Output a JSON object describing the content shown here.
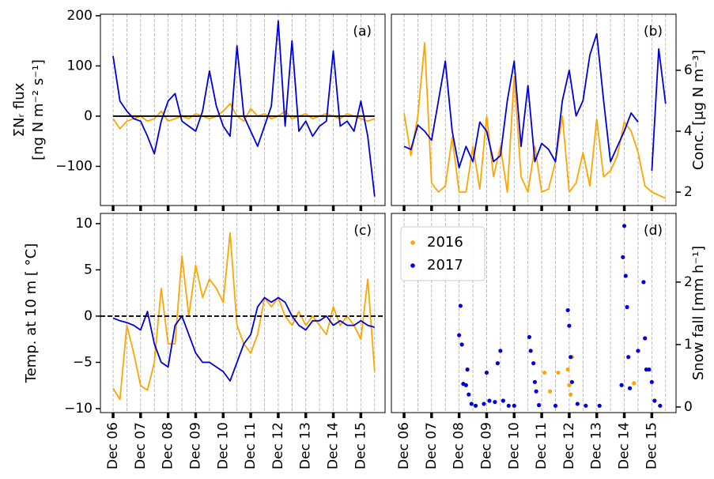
{
  "chart_data": [
    {
      "type": "line",
      "label": "(a)",
      "ylabel": [
        "ΣNᵣ flux",
        "[ng N m⁻² s⁻¹]"
      ],
      "yaxis": "left",
      "x": [
        6,
        6.25,
        6.5,
        6.75,
        7,
        7.25,
        7.5,
        7.75,
        8,
        8.25,
        8.5,
        8.75,
        9,
        9.25,
        9.5,
        9.75,
        10,
        10.25,
        10.5,
        10.75,
        11,
        11.25,
        11.5,
        11.75,
        12,
        12.25,
        12.5,
        12.75,
        13,
        13.25,
        13.5,
        13.75,
        14,
        14.25,
        14.5,
        14.75,
        15,
        15.25,
        15.5
      ],
      "series": [
        {
          "color": "orange",
          "values": [
            -5,
            -25,
            -10,
            -5,
            0,
            -10,
            -5,
            10,
            -10,
            -5,
            0,
            -5,
            5,
            0,
            -5,
            0,
            10,
            25,
            0,
            -10,
            15,
            0,
            5,
            -5,
            0,
            10,
            -5,
            0,
            5,
            -5,
            0,
            5,
            0,
            -5,
            5,
            0,
            -5,
            -10,
            -5
          ]
        },
        {
          "color": "#0000dd",
          "values": [
            120,
            30,
            10,
            -5,
            -10,
            -40,
            -75,
            -10,
            30,
            45,
            -10,
            -20,
            -30,
            10,
            90,
            20,
            -20,
            -40,
            140,
            0,
            -30,
            -60,
            -20,
            20,
            190,
            -20,
            150,
            -30,
            -10,
            -40,
            -20,
            -10,
            130,
            -20,
            -10,
            -30,
            30,
            -40,
            -160
          ]
        }
      ],
      "hline": 0,
      "hline_style": "solid",
      "xlim": [
        5.54,
        15.88
      ],
      "ylim": [
        -178,
        203
      ],
      "yticks": [
        {
          "value": -100,
          "label": "−100"
        },
        0,
        100,
        200
      ],
      "xticks": [
        6,
        7,
        8,
        9,
        10,
        11,
        12,
        13,
        14,
        15
      ],
      "xgrid": [
        6,
        6.5,
        7,
        7.5,
        8,
        8.5,
        9,
        9.5,
        10,
        10.5,
        11,
        11.5,
        12,
        12.5,
        13,
        13.5,
        14,
        14.5,
        15,
        15.5
      ]
    },
    {
      "type": "line",
      "label": "(b)",
      "ylabel": [
        "Conc. [μg N m⁻³]"
      ],
      "yaxis": "right",
      "x": [
        6,
        6.25,
        6.5,
        6.75,
        7,
        7.25,
        7.5,
        7.75,
        8,
        8.25,
        8.5,
        8.75,
        9,
        9.25,
        9.5,
        9.75,
        10,
        10.25,
        10.5,
        10.75,
        11,
        11.25,
        11.5,
        11.75,
        12,
        12.25,
        12.5,
        12.75,
        13,
        13.25,
        13.5,
        13.75,
        14,
        14.25,
        14.5,
        14.75,
        15,
        15.25,
        15.5
      ],
      "series": [
        {
          "color": "orange",
          "values": [
            4.6,
            3.2,
            4.5,
            6.9,
            2.3,
            2,
            2.2,
            3.8,
            2,
            2,
            3.5,
            2.1,
            4.5,
            2.5,
            3.5,
            2,
            5.8,
            2.5,
            2,
            3.5,
            2,
            2.1,
            3,
            4.5,
            2,
            2.3,
            3.3,
            2.2,
            4.4,
            2.5,
            2.7,
            3.2,
            4.3,
            4,
            3.3,
            2.2,
            2,
            1.9,
            1.8
          ]
        },
        {
          "color": "#0000dd",
          "values": [
            3.5,
            3.4,
            4.2,
            4,
            3.7,
            5,
            6.3,
            4,
            2.8,
            3.5,
            3,
            4.3,
            4,
            3,
            3.2,
            5,
            6.3,
            3.5,
            5.5,
            3,
            3.6,
            3.4,
            3,
            5,
            6,
            4.5,
            5,
            6.5,
            7.2,
            5,
            3,
            3.5,
            4,
            4.6,
            4.3,
            null,
            2.7,
            6.7,
            4.9
          ]
        }
      ],
      "xlim": [
        5.54,
        15.88
      ],
      "ylim": [
        1.56,
        7.84
      ],
      "yticks": [
        2,
        4,
        6
      ],
      "xticks": [
        6,
        7,
        8,
        9,
        10,
        11,
        12,
        13,
        14,
        15
      ],
      "xgrid": [
        6,
        6.5,
        7,
        7.5,
        8,
        8.5,
        9,
        9.5,
        10,
        10.5,
        11,
        11.5,
        12,
        12.5,
        13,
        13.5,
        14,
        14.5,
        15,
        15.5
      ]
    },
    {
      "type": "line",
      "label": "(c)",
      "ylabel": [
        "Temp. at 10 m [ °C]"
      ],
      "yaxis": "left",
      "x": [
        6,
        6.25,
        6.5,
        6.75,
        7,
        7.25,
        7.5,
        7.75,
        8,
        8.25,
        8.5,
        8.75,
        9,
        9.25,
        9.5,
        9.75,
        10,
        10.25,
        10.5,
        10.75,
        11,
        11.25,
        11.5,
        11.75,
        12,
        12.25,
        12.5,
        12.75,
        13,
        13.25,
        13.5,
        13.75,
        14,
        14.25,
        14.5,
        14.75,
        15,
        15.25,
        15.5
      ],
      "series": [
        {
          "color": "orange",
          "values": [
            -7.8,
            -9,
            -1,
            -4,
            -7.5,
            -8,
            -5,
            3,
            -3,
            -3,
            6.5,
            0,
            5.5,
            2,
            4,
            3,
            1.5,
            9,
            -1,
            -3,
            -4,
            -2,
            2,
            1,
            2,
            0,
            -1,
            0.5,
            -1,
            0,
            -1,
            -2,
            1,
            -1,
            0,
            -1,
            -2.5,
            4,
            -6
          ]
        },
        {
          "color": "#0000dd",
          "values": [
            -0.2,
            -0.5,
            -0.7,
            -1,
            -1.5,
            0.5,
            -3,
            -5,
            -5.5,
            -1,
            0,
            -2,
            -4,
            -5,
            -5,
            -5.5,
            -6,
            -7,
            -5,
            -3,
            -2,
            1,
            2,
            1.5,
            2,
            1.5,
            0,
            -1,
            -1.5,
            -0.5,
            -0.5,
            0,
            -1,
            -0.5,
            -1,
            -1,
            -0.5,
            -1,
            -1.2
          ]
        }
      ],
      "hline": 0,
      "hline_style": "dashed",
      "xlim": [
        5.54,
        15.88
      ],
      "ylim": [
        -10.43,
        11.1
      ],
      "yticks": [
        {
          "value": -10,
          "label": "−10"
        },
        {
          "value": -5,
          "label": "−5"
        },
        0,
        5,
        10
      ],
      "xticks": [
        {
          "value": 6,
          "label": "Dec 06"
        },
        {
          "value": 7,
          "label": "Dec 07"
        },
        {
          "value": 8,
          "label": "Dec 08"
        },
        {
          "value": 9,
          "label": "Dec 09"
        },
        {
          "value": 10,
          "label": "Dec 10"
        },
        {
          "value": 11,
          "label": "Dec 11"
        },
        {
          "value": 12,
          "label": "Dec 12"
        },
        {
          "value": 13,
          "label": "Dec 13"
        },
        {
          "value": 14,
          "label": "Dec 14"
        },
        {
          "value": 15,
          "label": "Dec 15"
        }
      ],
      "xgrid": [
        6,
        6.5,
        7,
        7.5,
        8,
        8.5,
        9,
        9.5,
        10,
        10.5,
        11,
        11.5,
        12,
        12.5,
        13,
        13.5,
        14,
        14.5,
        15,
        15.5
      ]
    },
    {
      "type": "scatter",
      "label": "(d)",
      "ylabel": [
        "Snow fall [mm h⁻¹]"
      ],
      "yaxis": "right",
      "legend": "upper left",
      "series": [
        {
          "name": "2016",
          "color": "orange",
          "x": [
            11.1,
            11.3,
            11.6,
            11.95,
            12,
            12.05,
            12.1,
            14.35
          ],
          "values": [
            0.55,
            0.25,
            0.55,
            0.6,
            0.35,
            0.2,
            0.8,
            0.38
          ]
        },
        {
          "name": "2017",
          "color": "#0000dd",
          "x": [
            8.05,
            8,
            8.1,
            8.15,
            8.25,
            8.3,
            8.35,
            8.45,
            8.6,
            8.9,
            9,
            9.1,
            9.3,
            9.4,
            9.5,
            9.6,
            9.8,
            10,
            10.55,
            10.6,
            10.7,
            10.75,
            10.8,
            10.9,
            11.5,
            11.95,
            12,
            12.05,
            12.1,
            12.3,
            12.6,
            13.1,
            13.9,
            13.95,
            14,
            14.05,
            14.1,
            14.15,
            14.2,
            14.5,
            14.7,
            14.75,
            14.8,
            14.9,
            15,
            15.1,
            15.3
          ],
          "values": [
            1.62,
            1.15,
            1,
            0.37,
            0.35,
            0.6,
            0.2,
            0.05,
            0.02,
            0.05,
            0.55,
            0.1,
            0.08,
            0.7,
            0.9,
            0.1,
            0.02,
            0.02,
            1.12,
            0.9,
            0.7,
            0.4,
            0.25,
            0.03,
            0.02,
            1.55,
            1.3,
            0.8,
            0.4,
            0.05,
            0.02,
            0.02,
            0.35,
            2.4,
            2.9,
            2.1,
            1.6,
            0.8,
            0.3,
            0.9,
            2,
            1.1,
            0.6,
            0.6,
            0.4,
            0.1,
            0.02
          ]
        }
      ],
      "xlim": [
        5.54,
        15.88
      ],
      "ylim": [
        -0.09,
        3.1
      ],
      "yticks": [
        0,
        1,
        2
      ],
      "xticks": [
        {
          "value": 6,
          "label": "Dec 06"
        },
        {
          "value": 7,
          "label": "Dec 07"
        },
        {
          "value": 8,
          "label": "Dec 08"
        },
        {
          "value": 9,
          "label": "Dec 09"
        },
        {
          "value": 10,
          "label": "Dec 10"
        },
        {
          "value": 11,
          "label": "Dec 11"
        },
        {
          "value": 12,
          "label": "Dec 12"
        },
        {
          "value": 13,
          "label": "Dec 13"
        },
        {
          "value": 14,
          "label": "Dec 14"
        },
        {
          "value": 15,
          "label": "Dec 15"
        }
      ],
      "xgrid": [
        6,
        6.5,
        7,
        7.5,
        8,
        8.5,
        9,
        9.5,
        10,
        10.5,
        11,
        11.5,
        12,
        12.5,
        13,
        13.5,
        14,
        14.5,
        15,
        15.5
      ]
    }
  ]
}
